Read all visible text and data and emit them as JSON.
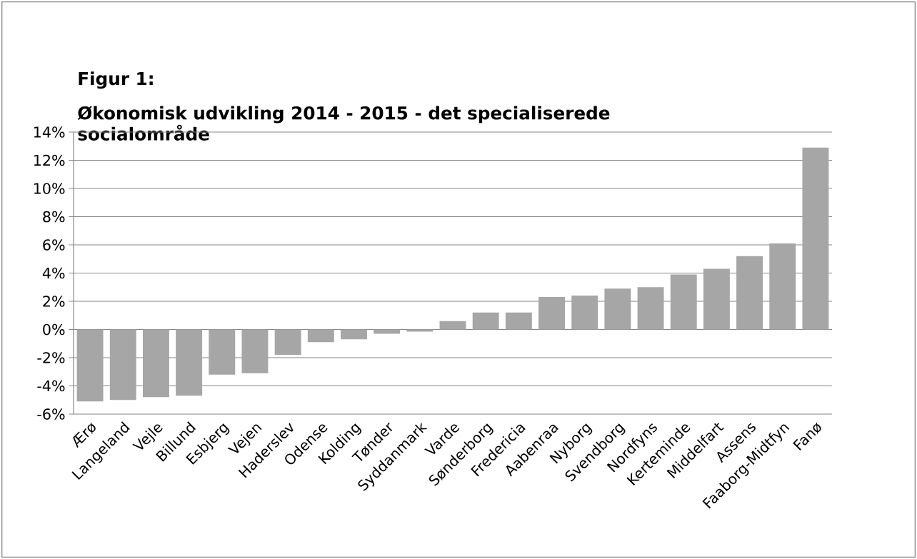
{
  "chart_data": {
    "type": "bar",
    "title": "Figur 1:",
    "subtitle": "Økonomisk udvikling 2014 - 2015 - det specialiserede socialområde",
    "categories": [
      "Ærø",
      "Langeland",
      "Vejle",
      "Billund",
      "Esbjerg",
      "Vejen",
      "Haderslev",
      "Odense",
      "Kolding",
      "Tønder",
      "Syddanmark",
      "Varde",
      "Sønderborg",
      "Fredericia",
      "Aabenraa",
      "Nyborg",
      "Svendborg",
      "Nordfyns",
      "Kerteminde",
      "Middelfart",
      "Assens",
      "Faaborg-Midtfyn",
      "Fanø"
    ],
    "values": [
      -5.1,
      -5.0,
      -4.8,
      -4.7,
      -3.2,
      -3.1,
      -1.8,
      -0.9,
      -0.7,
      -0.3,
      -0.15,
      0.6,
      1.2,
      1.2,
      2.3,
      2.4,
      2.9,
      3.0,
      3.9,
      4.3,
      5.2,
      6.1,
      12.9
    ],
    "color": "#a6a6a6",
    "ylim": [
      -6,
      14
    ],
    "yticks": [
      {
        "value": -6,
        "label": "-6%"
      },
      {
        "value": -4,
        "label": "-4%"
      },
      {
        "value": -2,
        "label": "-2%"
      },
      {
        "value": 0,
        "label": "0%"
      },
      {
        "value": 2,
        "label": "2%"
      },
      {
        "value": 4,
        "label": "4%"
      },
      {
        "value": 6,
        "label": "6%"
      },
      {
        "value": 8,
        "label": "8%"
      },
      {
        "value": 10,
        "label": "10%"
      },
      {
        "value": 12,
        "label": "12%"
      },
      {
        "value": 14,
        "label": "14%"
      }
    ],
    "grid": "y"
  }
}
